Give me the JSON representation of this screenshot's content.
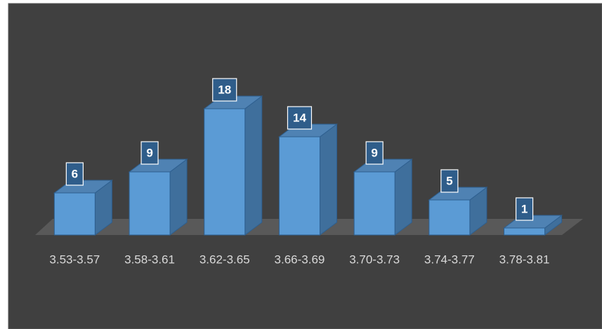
{
  "chart_data": {
    "type": "bar",
    "categories": [
      "3.53-3.57",
      "3.58-3.61",
      "3.62-3.65",
      "3.66-3.69",
      "3.70-3.73",
      "3.74-3.77",
      "3.78-3.81"
    ],
    "values": [
      6,
      9,
      18,
      14,
      9,
      5,
      1
    ],
    "color": "#5b9bd5"
  }
}
